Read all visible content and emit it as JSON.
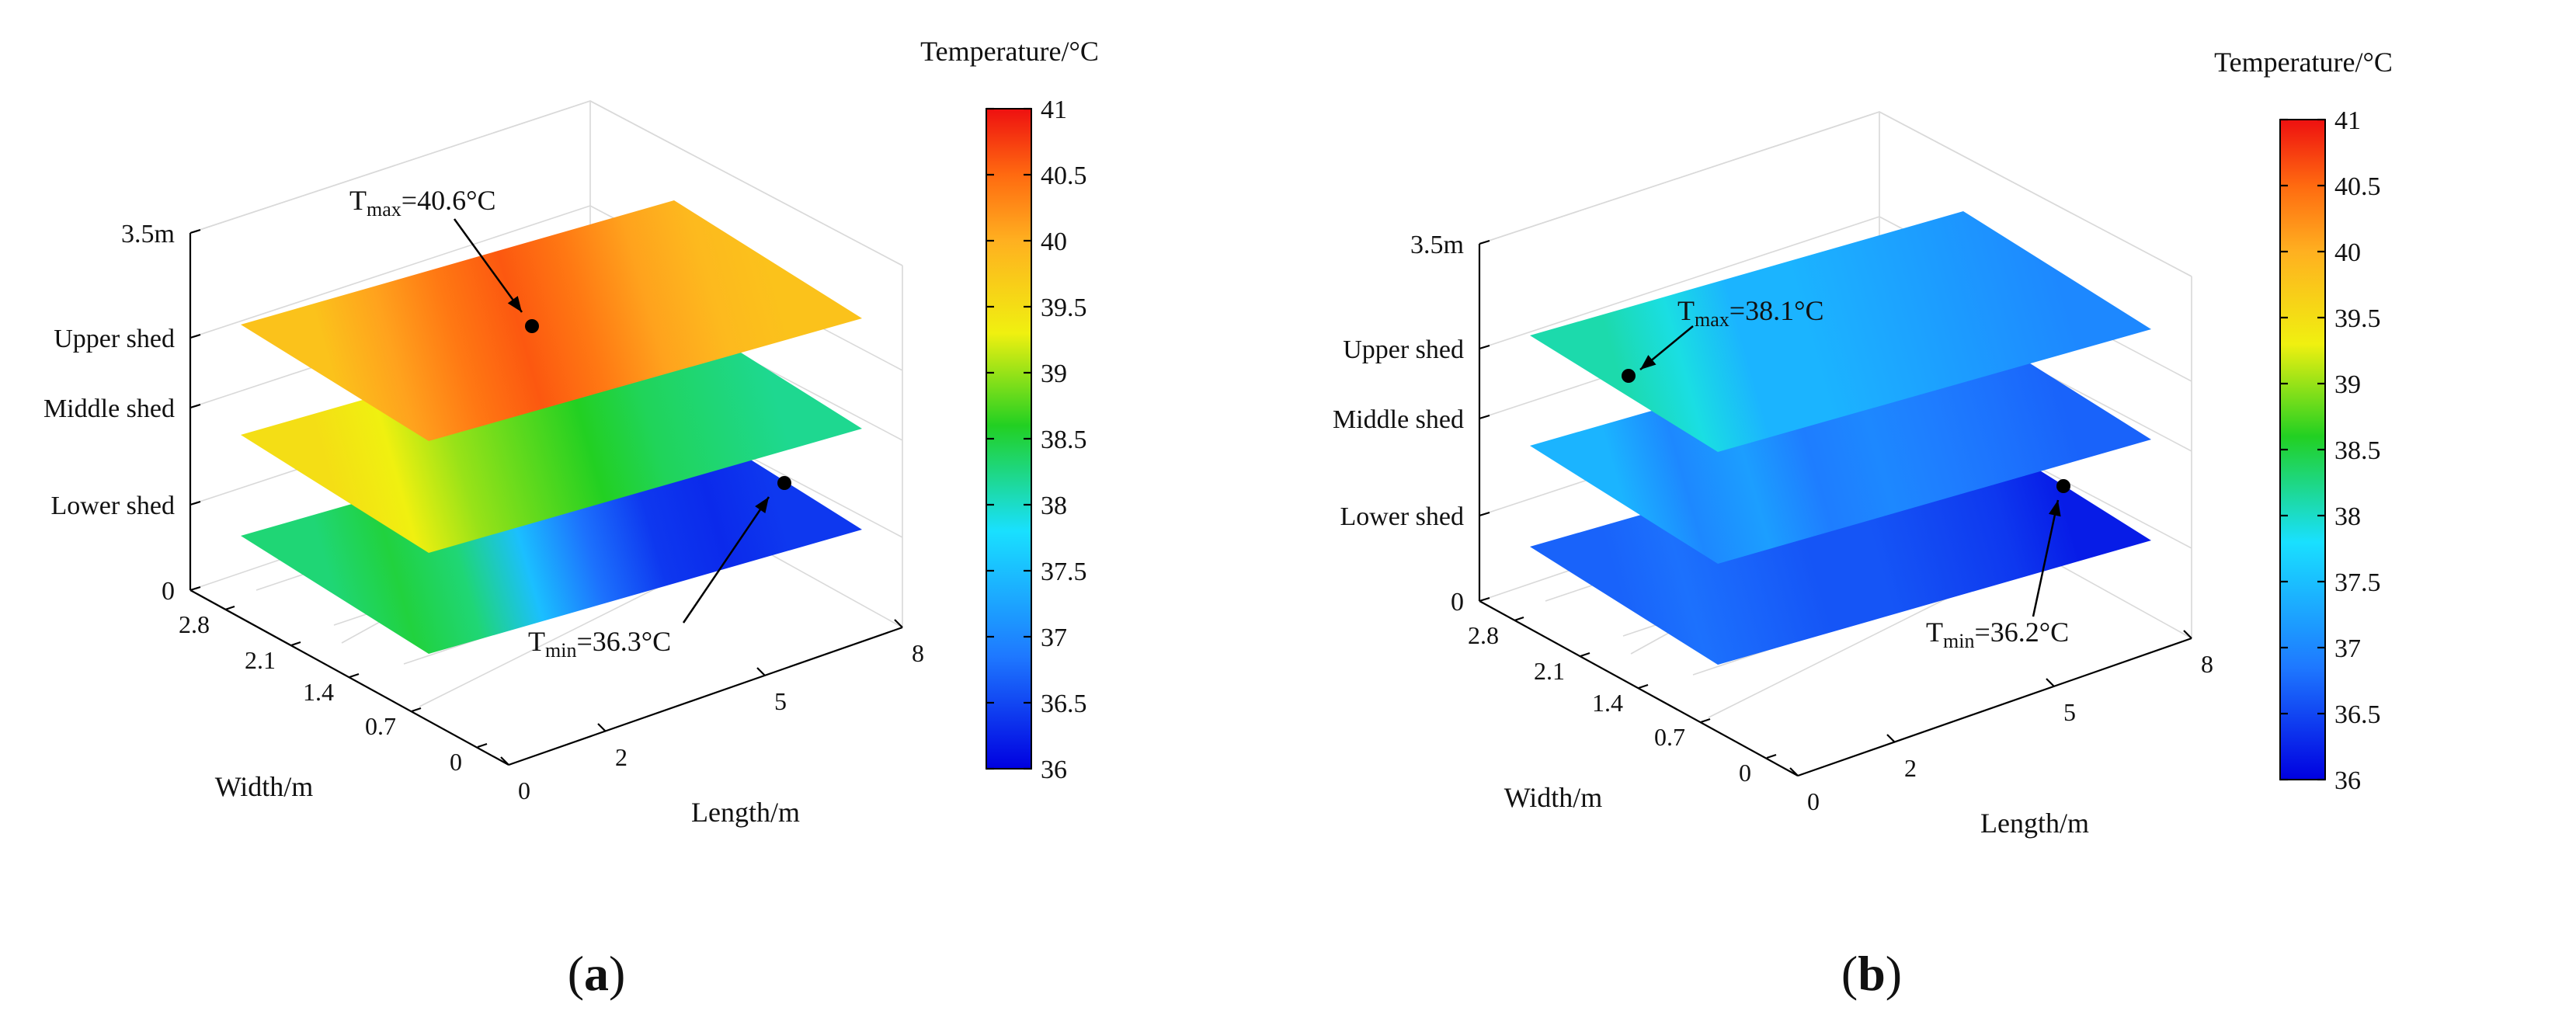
{
  "chart_data": [
    {
      "type": "heatmap",
      "panel_label": "(a)",
      "colorbar": {
        "title": "Temperature/°C",
        "min": 36,
        "max": 41,
        "tick_labels": [
          "41",
          "40.5",
          "40",
          "39.5",
          "39",
          "38.5",
          "38",
          "37.5",
          "37",
          "36.5",
          "36"
        ]
      },
      "axes": {
        "z_tick_labels": [
          "3.5m",
          "Upper shed",
          "Middle shed",
          "Lower shed",
          "0"
        ],
        "width_label": "Width/m",
        "width_tick_labels": [
          "2.8",
          "2.1",
          "1.4",
          "0.7",
          "0"
        ],
        "length_label": "Length/m",
        "length_tick_labels": [
          "0",
          "2",
          "5",
          "8"
        ]
      },
      "layers": [
        {
          "name": "Upper shed",
          "length_m": [
            0,
            8
          ],
          "temps": [
            39.8,
            40.1,
            40.4,
            40.6,
            40.4,
            40.1,
            39.9,
            39.8
          ]
        },
        {
          "name": "Middle shed",
          "length_m": [
            0,
            8
          ],
          "temps": [
            39.5,
            39.3,
            39.0,
            38.8,
            38.6,
            38.4,
            38.3,
            38.2
          ]
        },
        {
          "name": "Lower shed",
          "length_m": [
            0,
            8
          ],
          "temps": [
            38.3,
            38.5,
            38.3,
            37.5,
            36.8,
            36.4,
            36.3,
            36.4
          ]
        }
      ],
      "annotations": [
        {
          "label": "T",
          "sub": "max",
          "value_text": "=40.6°C"
        },
        {
          "label": "T",
          "sub": "min",
          "value_text": "=36.3°C"
        }
      ]
    },
    {
      "type": "heatmap",
      "panel_label": "(b)",
      "colorbar": {
        "title": "Temperature/°C",
        "min": 36,
        "max": 41,
        "tick_labels": [
          "41",
          "40.5",
          "40",
          "39.5",
          "39",
          "38.5",
          "38",
          "37.5",
          "37",
          "36.5",
          "36"
        ]
      },
      "axes": {
        "z_tick_labels": [
          "3.5m",
          "Upper shed",
          "Middle shed",
          "Lower shed",
          "0"
        ],
        "width_label": "Width/m",
        "width_tick_labels": [
          "2.8",
          "2.1",
          "1.4",
          "0.7",
          "0"
        ],
        "length_label": "Length/m",
        "length_tick_labels": [
          "0",
          "2",
          "5",
          "8"
        ]
      },
      "layers": [
        {
          "name": "Upper shed",
          "length_m": [
            0,
            8
          ],
          "temps": [
            38.1,
            37.9,
            37.4,
            37.4,
            37.3,
            37.2,
            37.1,
            37.0
          ]
        },
        {
          "name": "Middle shed",
          "length_m": [
            0,
            8
          ],
          "temps": [
            37.4,
            37.0,
            37.2,
            36.9,
            37.0,
            36.9,
            36.8,
            36.7
          ]
        },
        {
          "name": "Lower shed",
          "length_m": [
            0,
            8
          ],
          "temps": [
            36.7,
            36.8,
            36.7,
            36.6,
            36.6,
            36.5,
            36.4,
            36.2
          ]
        }
      ],
      "annotations": [
        {
          "label": "T",
          "sub": "max",
          "value_text": "=38.1°C"
        },
        {
          "label": "T",
          "sub": "min",
          "value_text": "=36.2°C"
        }
      ]
    }
  ]
}
